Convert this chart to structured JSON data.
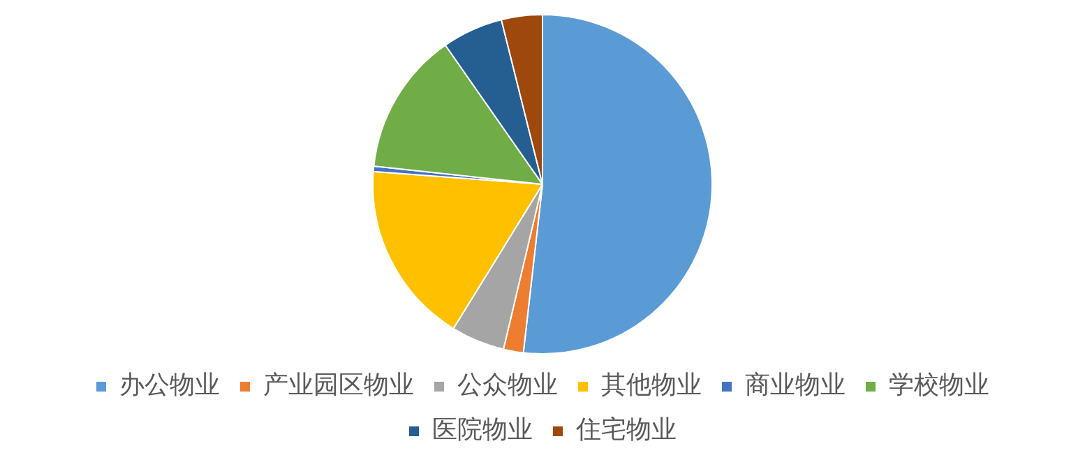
{
  "chart_data": {
    "type": "pie",
    "categories": [
      "办公物业",
      "产业园区物业",
      "公众物业",
      "其他物业",
      "商业物业",
      "学校物业",
      "医院物业",
      "住宅物业"
    ],
    "values": [
      51.8,
      1.9,
      5.1,
      17.4,
      0.5,
      13.6,
      5.8,
      3.9
    ],
    "colors": [
      "#5b9bd5",
      "#ed7d31",
      "#a5a5a5",
      "#ffc000",
      "#4472c4",
      "#70ad47",
      "#255e91",
      "#9e480e"
    ],
    "legend": "bottom"
  }
}
